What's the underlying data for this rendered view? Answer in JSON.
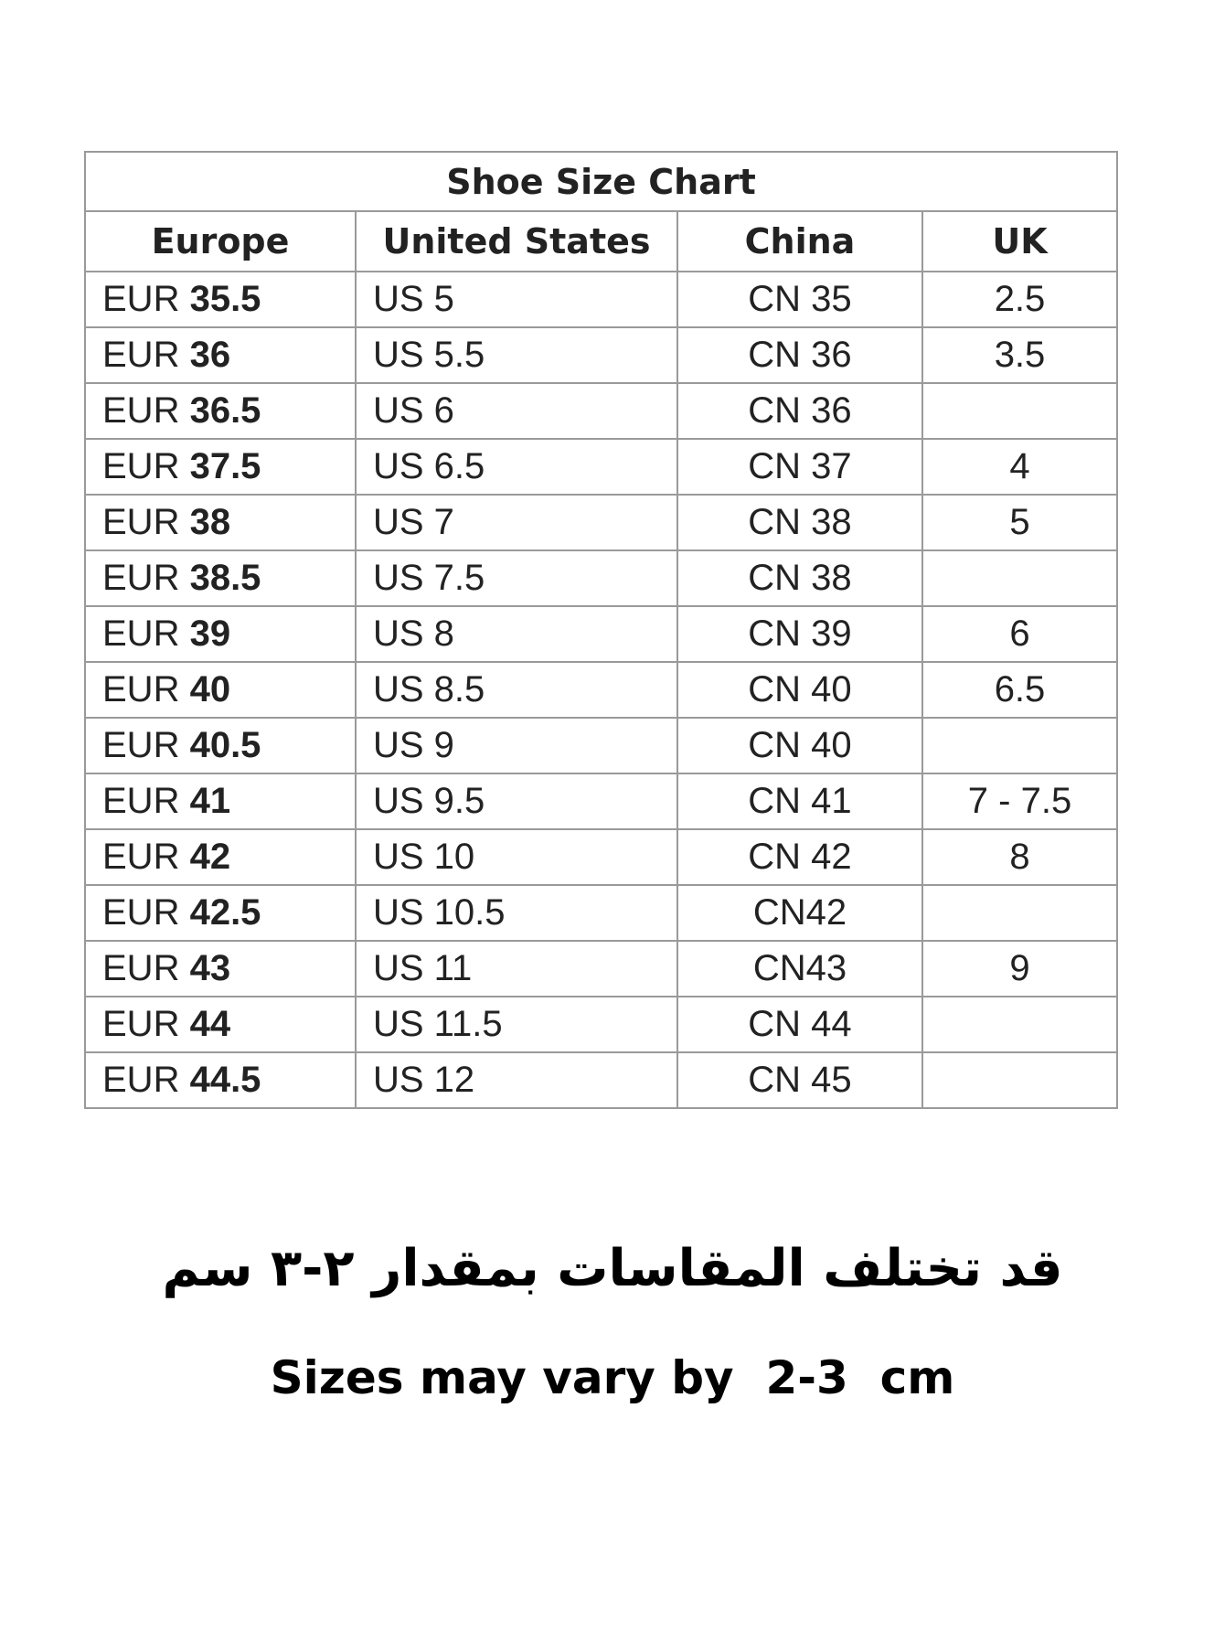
{
  "table": {
    "title": "Shoe Size Chart",
    "headers": [
      "Europe",
      "United States",
      "China",
      "UK"
    ],
    "rows": [
      {
        "eu_prefix": "EUR ",
        "eu": "35.5",
        "us": "US 5",
        "cn": "CN 35",
        "uk": "2.5"
      },
      {
        "eu_prefix": "EUR ",
        "eu": "36",
        "us": "US 5.5",
        "cn": "CN 36",
        "uk": "3.5"
      },
      {
        "eu_prefix": "EUR ",
        "eu": "36.5",
        "us": "US 6",
        "cn": "CN 36",
        "uk": ""
      },
      {
        "eu_prefix": "EUR ",
        "eu": "37.5",
        "us": "US 6.5",
        "cn": "CN 37",
        "uk": "4"
      },
      {
        "eu_prefix": "EUR ",
        "eu": "38",
        "us": "US 7",
        "cn": "CN 38",
        "uk": "5"
      },
      {
        "eu_prefix": "EUR ",
        "eu": "38.5",
        "us": "US 7.5",
        "cn": "CN 38",
        "uk": ""
      },
      {
        "eu_prefix": "EUR ",
        "eu": "39",
        "us": "US 8",
        "cn": "CN 39",
        "uk": "6"
      },
      {
        "eu_prefix": "EUR ",
        "eu": "40",
        "us": "US 8.5",
        "cn": "CN 40",
        "uk": "6.5"
      },
      {
        "eu_prefix": "EUR ",
        "eu": "40.5",
        "us": "US 9",
        "cn": "CN 40",
        "uk": ""
      },
      {
        "eu_prefix": "EUR ",
        "eu": "41",
        "us": "US 9.5",
        "cn": "CN 41",
        "uk": "7 - 7.5"
      },
      {
        "eu_prefix": "EUR ",
        "eu": "42",
        "us": "US 10",
        "cn": "CN 42",
        "uk": "8"
      },
      {
        "eu_prefix": "EUR ",
        "eu": "42.5",
        "us": "US 10.5",
        "cn": "CN42",
        "uk": ""
      },
      {
        "eu_prefix": "EUR ",
        "eu": "43",
        "us": "US 11",
        "cn": "CN43",
        "uk": "9"
      },
      {
        "eu_prefix": "EUR ",
        "eu": "44",
        "us": "US 11.5",
        "cn": "CN 44",
        "uk": ""
      },
      {
        "eu_prefix": "EUR ",
        "eu": "44.5",
        "us": "US 12",
        "cn": "CN 45",
        "uk": ""
      }
    ]
  },
  "note_arabic": "قد تختلف المقاسات بمقدار ٢-٣ سم",
  "note_english": "Sizes may vary by  2-3  cm"
}
